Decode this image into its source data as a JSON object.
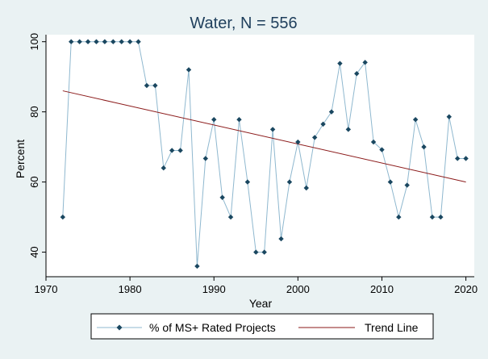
{
  "colors": {
    "background": "#eaf2f3",
    "plot_background": "#ffffff",
    "series_line": "#8fb8cf",
    "series_marker": "#1a4760",
    "trend_line": "#8b1a1a",
    "title_color": "#1f3f5c",
    "axis_color": "#000000"
  },
  "chart_data": {
    "type": "line",
    "title": "Water, N = 556",
    "xlabel": "Year",
    "ylabel": "Percent",
    "xlim": [
      1970,
      2021
    ],
    "ylim": [
      33,
      102
    ],
    "x_ticks": [
      1970,
      1980,
      1990,
      2000,
      2010,
      2020
    ],
    "y_ticks": [
      40,
      60,
      80,
      100
    ],
    "grid": false,
    "legend_position": "bottom",
    "series": [
      {
        "name": "% of MS+ Rated Projects",
        "marker": "diamond",
        "x": [
          1972,
          1973,
          1974,
          1975,
          1976,
          1977,
          1978,
          1979,
          1980,
          1981,
          1982,
          1983,
          1984,
          1985,
          1986,
          1987,
          1988,
          1989,
          1990,
          1991,
          1992,
          1993,
          1994,
          1995,
          1996,
          1997,
          1998,
          1999,
          2000,
          2001,
          2002,
          2003,
          2004,
          2005,
          2006,
          2007,
          2008,
          2009,
          2010,
          2011,
          2012,
          2013,
          2014,
          2015,
          2016,
          2017,
          2018,
          2019,
          2020
        ],
        "y": [
          50,
          100,
          100,
          100,
          100,
          100,
          100,
          100,
          100,
          100,
          87.5,
          87.5,
          64,
          69,
          69,
          92,
          36,
          66.7,
          77.8,
          55.6,
          50,
          77.8,
          60,
          40,
          40,
          75,
          43.8,
          60,
          71.4,
          58.3,
          72.7,
          76.5,
          80,
          93.8,
          75,
          90.9,
          94.1,
          71.4,
          69.2,
          60,
          50,
          59.1,
          77.8,
          70,
          50,
          50,
          78.6,
          66.7,
          66.7
        ]
      },
      {
        "name": "Trend Line",
        "x": [
          1972,
          2020
        ],
        "y": [
          86,
          60
        ]
      }
    ]
  }
}
